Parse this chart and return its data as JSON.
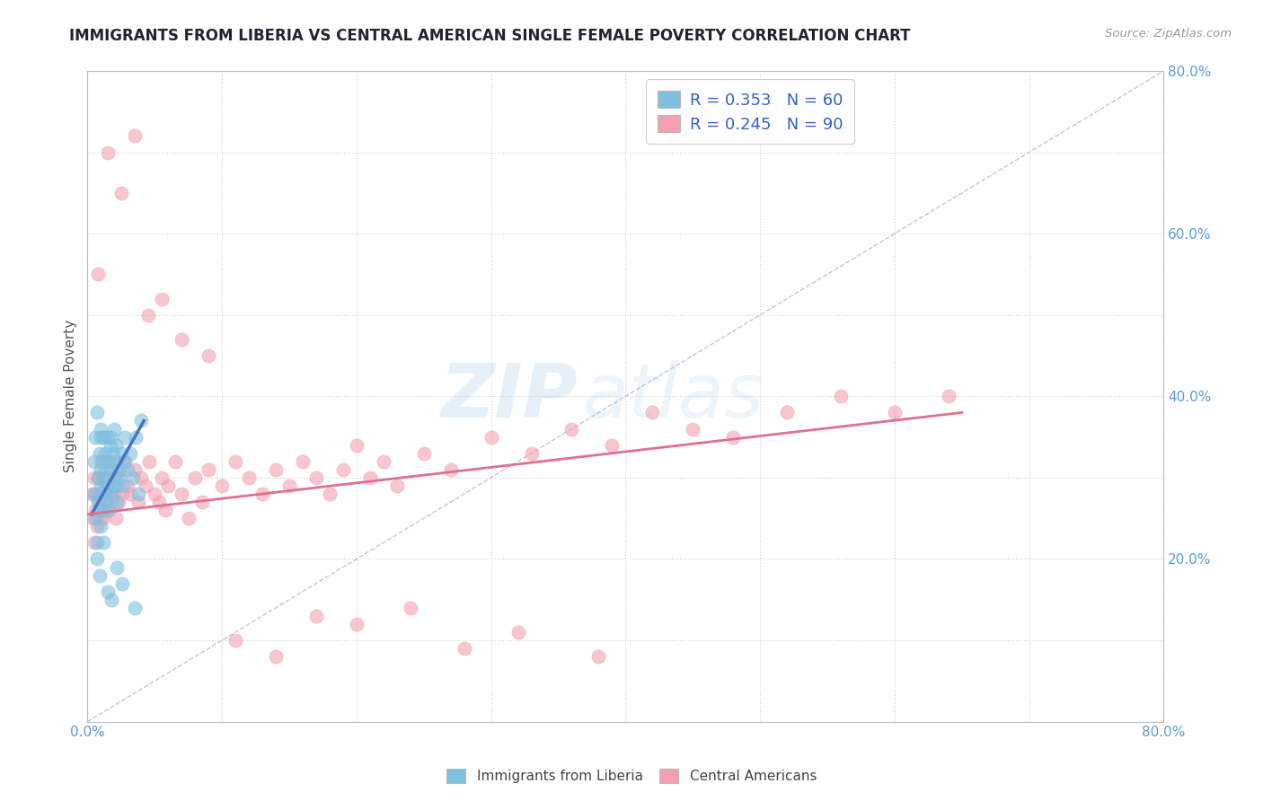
{
  "title": "IMMIGRANTS FROM LIBERIA VS CENTRAL AMERICAN SINGLE FEMALE POVERTY CORRELATION CHART",
  "source_text": "Source: ZipAtlas.com",
  "ylabel": "Single Female Poverty",
  "xlim": [
    0.0,
    0.8
  ],
  "ylim": [
    0.0,
    0.8
  ],
  "xticks": [
    0.0,
    0.1,
    0.2,
    0.3,
    0.4,
    0.5,
    0.6,
    0.7,
    0.8
  ],
  "yticks": [
    0.0,
    0.1,
    0.2,
    0.3,
    0.4,
    0.5,
    0.6,
    0.7,
    0.8
  ],
  "xticklabels": [
    "0.0%",
    "",
    "",
    "",
    "",
    "",
    "",
    "",
    "80.0%"
  ],
  "yticklabels": [
    "",
    "",
    "20.0%",
    "",
    "40.0%",
    "",
    "60.0%",
    "",
    "80.0%"
  ],
  "liberia_R": 0.353,
  "liberia_N": 60,
  "central_R": 0.245,
  "central_N": 90,
  "liberia_color": "#7fbfdf",
  "central_color": "#f4a0b0",
  "liberia_line_color": "#4472c4",
  "central_line_color": "#e07090",
  "background_color": "#ffffff",
  "grid_color": "#cccccc",
  "title_color": "#222233",
  "tick_label_color": "#5b9bd5",
  "liberia_x": [
    0.005,
    0.005,
    0.006,
    0.006,
    0.007,
    0.007,
    0.008,
    0.008,
    0.009,
    0.009,
    0.01,
    0.01,
    0.01,
    0.01,
    0.01,
    0.01,
    0.011,
    0.011,
    0.012,
    0.012,
    0.013,
    0.013,
    0.014,
    0.014,
    0.015,
    0.015,
    0.016,
    0.016,
    0.017,
    0.017,
    0.018,
    0.018,
    0.019,
    0.019,
    0.02,
    0.02,
    0.021,
    0.021,
    0.022,
    0.022,
    0.023,
    0.024,
    0.025,
    0.026,
    0.027,
    0.028,
    0.03,
    0.032,
    0.034,
    0.036,
    0.038,
    0.04,
    0.007,
    0.009,
    0.012,
    0.015,
    0.018,
    0.022,
    0.026,
    0.035
  ],
  "liberia_y": [
    0.28,
    0.32,
    0.25,
    0.35,
    0.22,
    0.38,
    0.3,
    0.27,
    0.33,
    0.26,
    0.31,
    0.35,
    0.28,
    0.24,
    0.36,
    0.29,
    0.32,
    0.26,
    0.3,
    0.35,
    0.28,
    0.33,
    0.27,
    0.31,
    0.35,
    0.29,
    0.32,
    0.26,
    0.34,
    0.28,
    0.31,
    0.35,
    0.29,
    0.33,
    0.3,
    0.36,
    0.34,
    0.29,
    0.32,
    0.27,
    0.31,
    0.3,
    0.33,
    0.29,
    0.32,
    0.35,
    0.31,
    0.33,
    0.3,
    0.35,
    0.28,
    0.37,
    0.2,
    0.18,
    0.22,
    0.16,
    0.15,
    0.19,
    0.17,
    0.14
  ],
  "central_x": [
    0.003,
    0.004,
    0.005,
    0.005,
    0.006,
    0.007,
    0.007,
    0.008,
    0.009,
    0.01,
    0.01,
    0.011,
    0.012,
    0.012,
    0.013,
    0.014,
    0.015,
    0.015,
    0.016,
    0.017,
    0.018,
    0.019,
    0.02,
    0.021,
    0.022,
    0.023,
    0.025,
    0.026,
    0.028,
    0.03,
    0.032,
    0.035,
    0.038,
    0.04,
    0.043,
    0.046,
    0.05,
    0.053,
    0.055,
    0.058,
    0.06,
    0.065,
    0.07,
    0.075,
    0.08,
    0.085,
    0.09,
    0.1,
    0.11,
    0.12,
    0.13,
    0.14,
    0.15,
    0.16,
    0.17,
    0.18,
    0.19,
    0.2,
    0.21,
    0.22,
    0.23,
    0.25,
    0.27,
    0.3,
    0.33,
    0.36,
    0.39,
    0.42,
    0.45,
    0.48,
    0.52,
    0.56,
    0.6,
    0.64,
    0.008,
    0.015,
    0.025,
    0.035,
    0.045,
    0.055,
    0.07,
    0.09,
    0.11,
    0.14,
    0.17,
    0.2,
    0.24,
    0.28,
    0.32,
    0.38
  ],
  "central_y": [
    0.28,
    0.25,
    0.3,
    0.22,
    0.26,
    0.28,
    0.24,
    0.3,
    0.27,
    0.25,
    0.32,
    0.28,
    0.25,
    0.3,
    0.27,
    0.29,
    0.26,
    0.32,
    0.28,
    0.3,
    0.27,
    0.32,
    0.28,
    0.25,
    0.3,
    0.27,
    0.31,
    0.28,
    0.32,
    0.29,
    0.28,
    0.31,
    0.27,
    0.3,
    0.29,
    0.32,
    0.28,
    0.27,
    0.3,
    0.26,
    0.29,
    0.32,
    0.28,
    0.25,
    0.3,
    0.27,
    0.31,
    0.29,
    0.32,
    0.3,
    0.28,
    0.31,
    0.29,
    0.32,
    0.3,
    0.28,
    0.31,
    0.34,
    0.3,
    0.32,
    0.29,
    0.33,
    0.31,
    0.35,
    0.33,
    0.36,
    0.34,
    0.38,
    0.36,
    0.35,
    0.38,
    0.4,
    0.38,
    0.4,
    0.55,
    0.7,
    0.65,
    0.72,
    0.5,
    0.52,
    0.47,
    0.45,
    0.1,
    0.08,
    0.13,
    0.12,
    0.14,
    0.09,
    0.11,
    0.08
  ],
  "liberia_trend_x": [
    0.003,
    0.042
  ],
  "liberia_trend_y": [
    0.255,
    0.37
  ],
  "central_trend_x": [
    0.0,
    0.65
  ],
  "central_trend_y": [
    0.255,
    0.38
  ]
}
